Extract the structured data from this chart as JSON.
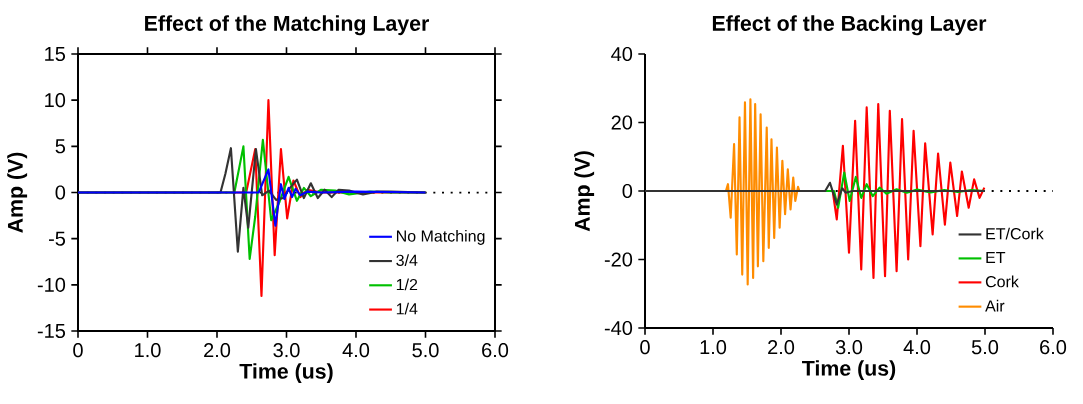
{
  "chart_data": [
    {
      "type": "line",
      "title": "Effect of the Matching Layer",
      "xlabel": "Time (us)",
      "ylabel": "Amp (V)",
      "xlim": [
        0,
        6
      ],
      "ylim": [
        -15,
        15
      ],
      "xticks": [
        0,
        {
          "value": 1,
          "label": "1.0"
        },
        {
          "value": 2,
          "label": "2.0"
        },
        {
          "value": 3,
          "label": "3.0"
        },
        {
          "value": 4,
          "label": "4.0"
        },
        {
          "value": 5,
          "label": "5.0"
        },
        {
          "value": 6,
          "label": "6.0"
        }
      ],
      "yticks": [
        -15,
        -10,
        -5,
        0,
        5,
        10,
        15
      ],
      "legend": "bottom right",
      "grid": false,
      "marker": "none",
      "line_style": "solid",
      "ref_lines": [
        {
          "axis": "y",
          "value": 0,
          "color": "#000000",
          "line_style": "dotted"
        }
      ],
      "series": [
        {
          "name": "No Matching",
          "color": "#0000ff",
          "x": [
            0,
            2.6,
            2.74,
            2.84,
            2.92,
            2.97,
            3.03,
            3.08,
            3.13,
            3.2,
            3.3,
            3.5,
            4.0,
            5.0
          ],
          "values": [
            0,
            0,
            2.5,
            -3.6,
            0.9,
            -0.7,
            0.5,
            -0.5,
            0.4,
            -0.3,
            0.1,
            0,
            0.1,
            0
          ]
        },
        {
          "name": "3/4",
          "color": "#333333",
          "x": [
            0,
            2.05,
            2.12,
            2.2,
            2.3,
            2.38,
            2.45,
            2.56,
            2.65,
            2.75,
            2.85,
            2.95,
            3.05,
            3.15,
            3.25,
            3.35,
            3.45,
            3.55,
            3.65,
            3.75,
            3.9,
            4.1,
            4.3,
            4.5,
            5.0
          ],
          "values": [
            0,
            0,
            2.0,
            4.8,
            -6.4,
            0.5,
            -3.8,
            4.7,
            -0.3,
            0.2,
            -0.8,
            -0.6,
            0.5,
            1.4,
            -0.6,
            1.0,
            -0.6,
            0.3,
            -0.5,
            0.3,
            0.2,
            -0.2,
            0.1,
            0.1,
            0
          ]
        },
        {
          "name": "1/2",
          "color": "#00c000",
          "x": [
            0,
            2.25,
            2.38,
            2.47,
            2.55,
            2.66,
            2.78,
            2.9,
            3.03,
            3.15,
            3.25,
            3.35,
            3.5,
            3.7,
            3.9,
            4.2,
            4.5,
            5.0
          ],
          "values": [
            0,
            0,
            5.0,
            -7.2,
            -2.6,
            5.7,
            -3.0,
            -1.0,
            1.7,
            -0.9,
            0.5,
            -0.4,
            0.3,
            0.2,
            -0.2,
            0.1,
            0,
            0
          ]
        },
        {
          "name": "1/4",
          "color": "#ff0000",
          "x": [
            0,
            2.42,
            2.55,
            2.64,
            2.74,
            2.83,
            2.92,
            3.01,
            3.1,
            3.2,
            3.3,
            3.5,
            5.0
          ],
          "values": [
            0,
            0,
            4.7,
            -11.2,
            10.0,
            -6.8,
            4.7,
            -2.8,
            1.3,
            -0.5,
            0.3,
            0,
            0
          ]
        }
      ]
    },
    {
      "type": "line",
      "title": "Effect of the Backing Layer",
      "xlabel": "Time (us)",
      "ylabel": "Amp (V)",
      "xlim": [
        0,
        6
      ],
      "ylim": [
        -40,
        40
      ],
      "xticks": [
        0,
        {
          "value": 1,
          "label": "1.0"
        },
        {
          "value": 2,
          "label": "2.0"
        },
        {
          "value": 3,
          "label": "3.0"
        },
        {
          "value": 4,
          "label": "4.0"
        },
        {
          "value": 5,
          "label": "5.0"
        },
        {
          "value": 6,
          "label": "6.0"
        }
      ],
      "yticks": [
        -40,
        -20,
        0,
        20,
        40
      ],
      "legend": "bottom right",
      "grid": false,
      "marker": "none",
      "line_style": "solid",
      "ref_lines": [
        {
          "axis": "y",
          "value": 0,
          "color": "#000000",
          "line_style": "dotted"
        }
      ],
      "series": [
        {
          "name": "ET/Cork",
          "color": "#333333",
          "x": [
            0,
            2.65,
            2.72,
            2.82,
            2.9,
            2.95,
            3.05,
            5.0
          ],
          "values": [
            0,
            0,
            2.4,
            -3.9,
            0.8,
            -0.5,
            0,
            0
          ]
        },
        {
          "name": "ET",
          "color": "#00c000",
          "x": [
            0,
            2.78,
            2.84,
            2.93,
            3.01,
            3.1,
            3.18,
            3.26,
            3.35,
            3.45,
            3.55,
            3.7,
            3.85,
            4.0,
            4.2,
            4.4,
            4.6,
            4.8,
            5.0
          ],
          "values": [
            0,
            0,
            -4.9,
            5.4,
            -2.9,
            4.1,
            -2.0,
            2.0,
            -1.5,
            1.0,
            -0.8,
            0.5,
            -0.5,
            0.4,
            -0.4,
            0.3,
            -0.3,
            0.3,
            0
          ]
        },
        {
          "name": "Cork",
          "color": "#ff0000",
          "x": [
            0,
            2.76,
            2.82,
            2.91,
            3.0,
            3.09,
            3.18,
            3.26,
            3.36,
            3.43,
            3.53,
            3.6,
            3.7,
            3.78,
            3.87,
            3.95,
            4.05,
            4.12,
            4.23,
            4.31,
            4.41,
            4.49,
            4.59,
            4.66,
            4.76,
            4.84,
            4.92,
            4.99
          ],
          "values": [
            0,
            0,
            -8.3,
            13.2,
            -18.0,
            20.5,
            -22.9,
            24.4,
            -25.4,
            25.4,
            -24.9,
            23.4,
            -23.4,
            21.0,
            -20.0,
            17.6,
            -16.1,
            13.9,
            -12.7,
            10.9,
            -9.8,
            8.3,
            -7.3,
            5.7,
            -4.9,
            3.4,
            -2.0,
            1.0
          ]
        },
        {
          "name": "Air",
          "color": "#ff8c00",
          "x": [
            0,
            1.19,
            1.22,
            1.26,
            1.31,
            1.35,
            1.39,
            1.43,
            1.47,
            1.51,
            1.55,
            1.59,
            1.62,
            1.66,
            1.7,
            1.74,
            1.79,
            1.82,
            1.86,
            1.9,
            1.94,
            1.98,
            2.02,
            2.06,
            2.1,
            2.14,
            2.18,
            2.21,
            2.25,
            2.27
          ],
          "values": [
            0,
            0,
            2.0,
            -7.8,
            13.7,
            -18.5,
            21.5,
            -24.4,
            25.9,
            -27.3,
            26.8,
            -25.4,
            25.4,
            -22.0,
            22.4,
            -20.5,
            18.5,
            -16.6,
            15.1,
            -13.7,
            12.7,
            -10.7,
            8.8,
            -6.8,
            6.3,
            -5.4,
            3.9,
            -2.9,
            1.2,
            0
          ]
        }
      ]
    }
  ]
}
